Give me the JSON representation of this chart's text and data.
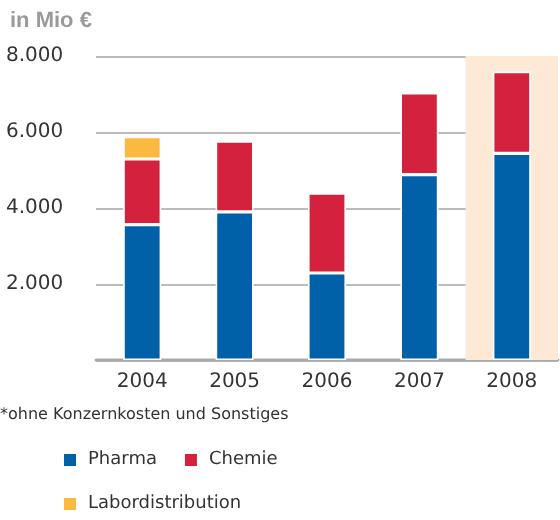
{
  "chart_data": {
    "type": "bar",
    "title": "in Mio €",
    "stacked": true,
    "categories": [
      "2004",
      "2005",
      "2006",
      "2007",
      "2008"
    ],
    "series": [
      {
        "name": "Pharma",
        "color": "#0060a8",
        "values": [
          3560,
          3900,
          2290,
          4880,
          5440
        ]
      },
      {
        "name": "Chemie",
        "color": "#d4213d",
        "values": [
          1730,
          1860,
          2100,
          2150,
          2150
        ]
      },
      {
        "name": "Labordistribution",
        "color": "#fbb93f",
        "values": [
          590,
          null,
          null,
          null,
          null
        ]
      }
    ],
    "ylim": [
      0,
      8000
    ],
    "yticks": [
      {
        "value": 0,
        "label": null
      },
      {
        "value": 2000,
        "label": "2.000"
      },
      {
        "value": 4000,
        "label": "4.000"
      },
      {
        "value": 6000,
        "label": "6.000"
      },
      {
        "value": 8000,
        "label": "8.000"
      }
    ],
    "grid": "y",
    "legend": "bottom",
    "bands": [
      {
        "axis": "x",
        "from": "2008",
        "to": "2008",
        "color": "#fde9d6"
      }
    ],
    "annotations": [
      "*ohne Konzernkosten und Sonstiges"
    ]
  }
}
